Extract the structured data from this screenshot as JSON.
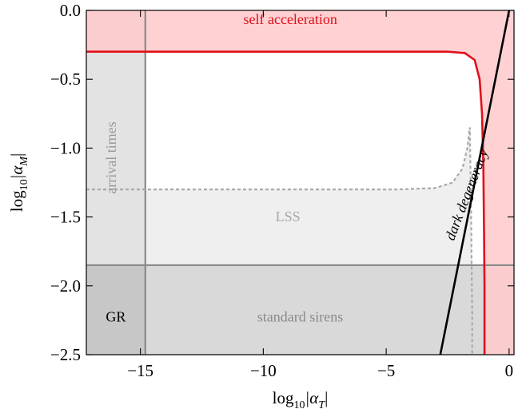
{
  "chart_data": {
    "type": "line",
    "xlabel": "log",
    "xlabel_sub": "10",
    "xlabel_tail": "|α",
    "xlabel_tail_sub": "T",
    "xlabel_end": "|",
    "ylabel": "log",
    "ylabel_sub": "10",
    "ylabel_tail": "|α",
    "ylabel_tail_sub": "M",
    "ylabel_end": "|",
    "xlim": [
      -17.2,
      0.2
    ],
    "ylim": [
      -2.5,
      0.0
    ],
    "xticks": [
      -15,
      -10,
      -5,
      0
    ],
    "xtick_labels": [
      "−15",
      "−10",
      "−5",
      "0"
    ],
    "yticks": [
      0.0,
      -0.5,
      -1.0,
      -1.5,
      -2.0,
      -2.5
    ],
    "ytick_labels": [
      "0.0",
      "−0.5",
      "−1.0",
      "−1.5",
      "−2.0",
      "−2.5"
    ],
    "constraints": {
      "arrival_times_x": -14.8,
      "standard_sirens_y": -1.85,
      "self_acceleration_y": -0.3,
      "self_acceleration_edge_x": -1.0,
      "lss_y": -1.3,
      "lss_edge_x": -1.5
    },
    "series": [
      {
        "name": "self acceleration",
        "color": "#e0101a",
        "x": [
          -17.2,
          -5.0,
          -2.5,
          -1.8,
          -1.4,
          -1.2,
          -1.1,
          -1.05,
          -1.02,
          -1.0,
          -1.0
        ],
        "y": [
          -0.3,
          -0.3,
          -0.3,
          -0.31,
          -0.36,
          -0.5,
          -0.75,
          -1.1,
          -1.6,
          -2.0,
          -2.5
        ]
      },
      {
        "name": "dark degeneracy",
        "color": "#000000",
        "x": [
          -2.8,
          0.0
        ],
        "y": [
          -2.5,
          0.0
        ]
      },
      {
        "name": "LSS",
        "color": "#aaaaaa",
        "x": [
          -17.2,
          -4.5,
          -3.0,
          -2.3,
          -1.9,
          -1.7,
          -1.6,
          -1.55,
          -1.52,
          -1.5,
          -1.5
        ],
        "y": [
          -1.3,
          -1.3,
          -1.29,
          -1.25,
          -1.15,
          -1.0,
          -0.85,
          -1.4,
          -1.9,
          -2.2,
          -2.5
        ]
      }
    ],
    "region_labels": {
      "self_acceleration": "self acceleration",
      "arrival_times": "arrival times",
      "lss": "LSS",
      "standard_sirens": "standard sirens",
      "gr": "GR",
      "dark_degeneracy": "dark degeneracy"
    },
    "colors": {
      "self_acceleration_fill": "#ffc9cb",
      "self_acceleration_line": "#e0101a",
      "arrival_times_fill": "#e3e3e3",
      "lss_fill": "#efefef",
      "standard_sirens_fill": "#d9d9d9",
      "gr_fill": "#c7c7c7",
      "constraint_line": "#8a8a8a",
      "lss_line": "#aaaaaa"
    }
  }
}
